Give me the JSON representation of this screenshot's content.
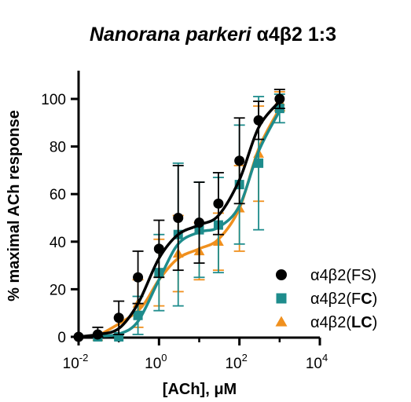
{
  "chart_data": {
    "type": "scatter",
    "title_italic": "Nanorana parkeri",
    "title_rest": " α4β2 1:3",
    "xlabel": "[ACh], μM",
    "ylabel": "% maximal ACh response",
    "x_scale": "log",
    "xlim": [
      0.01,
      10000
    ],
    "ylim": [
      0,
      105
    ],
    "x_ticks": [
      {
        "value": 0.01,
        "base": "10",
        "exp": "-2"
      },
      {
        "value": 1,
        "base": "10",
        "exp": "0"
      },
      {
        "value": 100,
        "base": "10",
        "exp": "2"
      },
      {
        "value": 10000,
        "base": "10",
        "exp": "4"
      }
    ],
    "y_ticks": [
      0,
      20,
      40,
      60,
      80,
      100
    ],
    "y_tick_labels": [
      "0",
      "20",
      "40",
      "60",
      "80",
      "100"
    ],
    "legend_position": "bottom-right",
    "series": [
      {
        "name": "α4β2(FS)",
        "legend_prefix": "α4β2(",
        "legend_bold": "",
        "legend_plain": "FS",
        "legend_suffix": ")",
        "color": "#000000",
        "marker": "circle",
        "x": [
          0.01,
          0.03,
          0.1,
          0.3,
          1,
          3,
          10,
          30,
          100,
          300,
          1000
        ],
        "y": [
          0,
          1,
          8,
          25,
          37,
          50,
          48,
          56,
          74,
          91,
          100
        ],
        "err": [
          0,
          3,
          7,
          11,
          12,
          22,
          17,
          13,
          18,
          8,
          4
        ],
        "curve": [
          0,
          1,
          3.5,
          14,
          33,
          43,
          47,
          51,
          66,
          88,
          99
        ]
      },
      {
        "name": "α4β2(FC)",
        "legend_prefix": "α4β2(F",
        "legend_bold": "C",
        "legend_plain": "",
        "legend_suffix": ")",
        "color": "#1e8c8c",
        "marker": "square",
        "x": [
          0.03,
          0.1,
          0.3,
          1,
          3,
          10,
          30,
          100,
          300,
          1000
        ],
        "y": [
          0,
          0,
          9,
          27,
          43,
          45,
          47,
          64,
          73,
          96
        ],
        "err": [
          0,
          0,
          8,
          16,
          30,
          20,
          20,
          25,
          28,
          6
        ],
        "curve": [
          0.3,
          1.2,
          6.5,
          24,
          39,
          44,
          46,
          55,
          78,
          95
        ]
      },
      {
        "name": "α4β2(LC)",
        "legend_prefix": "α4β2(",
        "legend_bold": "LC",
        "legend_plain": "",
        "legend_suffix": ")",
        "color": "#f0901e",
        "marker": "triangle",
        "x": [
          0.03,
          0.3,
          1,
          3,
          10,
          30,
          100,
          300,
          1000
        ],
        "y": [
          0,
          14,
          27,
          35,
          36,
          40,
          54,
          77,
          99
        ],
        "err": [
          0,
          10,
          14,
          16,
          12,
          12,
          18,
          20,
          4
        ],
        "curve": [
          0.3,
          11,
          24,
          33,
          37,
          41,
          54,
          79,
          96
        ]
      }
    ]
  }
}
